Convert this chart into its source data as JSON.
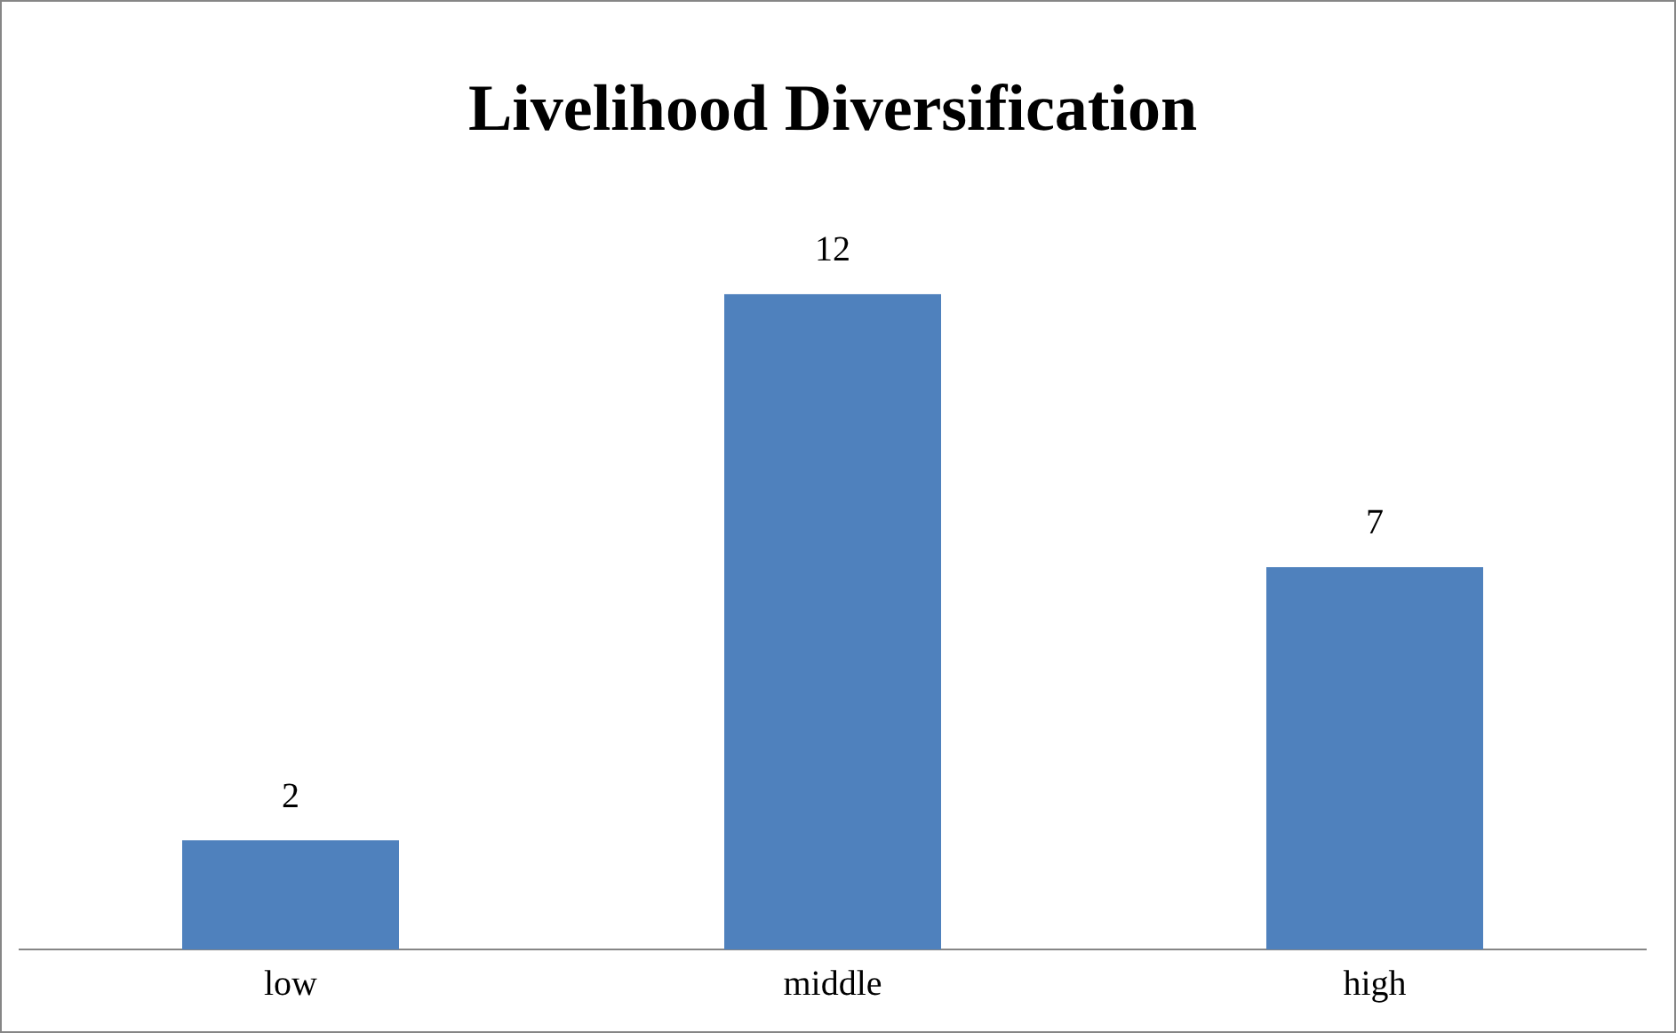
{
  "chart_data": {
    "type": "bar",
    "title": "Livelihood Diversification",
    "categories": [
      "low",
      "middle",
      "high"
    ],
    "values": [
      2,
      12,
      7
    ],
    "color": "#4f81bd",
    "data_labels": true,
    "grid": false,
    "legend": false
  }
}
